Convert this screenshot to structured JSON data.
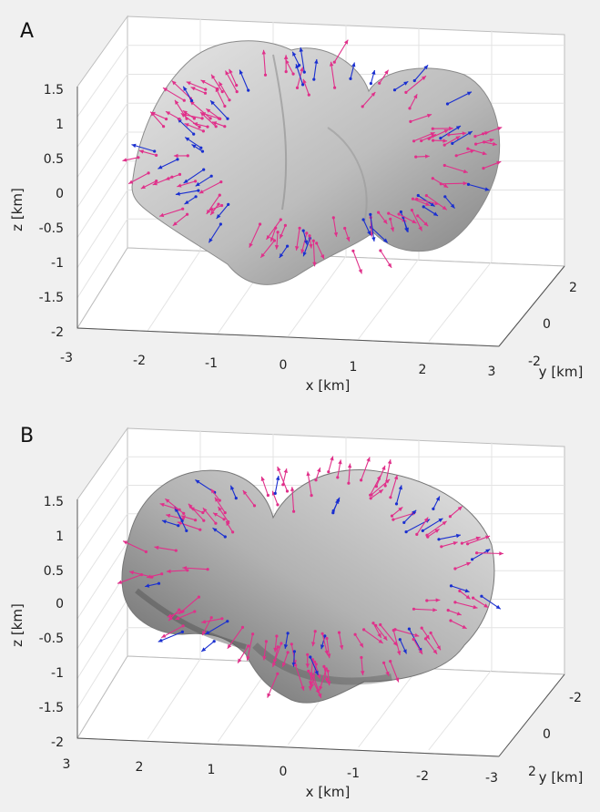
{
  "chart_data": [
    {
      "type": "scatter",
      "panel_label": "A",
      "title": "",
      "xlabel": "x [km]",
      "ylabel": "y [km]",
      "zlabel": "z [km]",
      "xlim": [
        -3,
        3
      ],
      "ylim": [
        -2,
        2
      ],
      "zlim": [
        -2,
        1.5
      ],
      "x_ticks": [
        "-3",
        "-2",
        "-1",
        "0",
        "1",
        "2",
        "3"
      ],
      "y_ticks": [
        "-2",
        "0",
        "2"
      ],
      "z_ticks": [
        "1.5",
        "1",
        "0.5",
        "0",
        "-0.5",
        "-1",
        "-1.5",
        "-2"
      ],
      "grid": true,
      "colors": {
        "magenta": "#e0308a",
        "blue": "#1a2fd0",
        "surface": "#b9b9b9"
      }
    },
    {
      "type": "scatter",
      "panel_label": "B",
      "title": "",
      "xlabel": "x [km]",
      "ylabel": "y [km]",
      "zlabel": "z [km]",
      "xlim": [
        3,
        -3
      ],
      "ylim": [
        -2,
        2
      ],
      "zlim": [
        -2,
        1.5
      ],
      "x_ticks": [
        "3",
        "2",
        "1",
        "0",
        "-1",
        "-2",
        "-3"
      ],
      "y_ticks": [
        "-2",
        "0",
        "2"
      ],
      "z_ticks": [
        "1.5",
        "1",
        "0.5",
        "0",
        "-0.5",
        "-1",
        "-1.5",
        "-2"
      ],
      "grid": true,
      "colors": {
        "magenta": "#e0308a",
        "blue": "#1a2fd0",
        "surface": "#a8a8a8"
      }
    }
  ]
}
